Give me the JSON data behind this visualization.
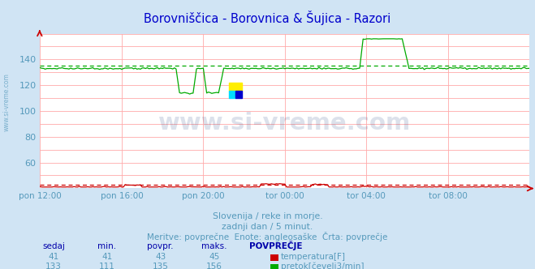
{
  "title": "Borovniščica - Borovnica & Šujica - Razori",
  "title_color": "#0000cc",
  "bg_color": "#d0e4f4",
  "plot_bg_color": "#ffffff",
  "grid_color_h": "#ffaaaa",
  "grid_color_v": "#ffaaaa",
  "xlabel_color": "#5599bb",
  "tick_color": "#5599bb",
  "xlabels": [
    "pon 12:00",
    "pon 16:00",
    "pon 20:00",
    "tor 00:00",
    "tor 04:00",
    "tor 08:00"
  ],
  "xtick_positions": [
    0,
    48,
    96,
    144,
    192,
    240
  ],
  "total_points": 289,
  "ylim": [
    40,
    160
  ],
  "yticks": [
    60,
    80,
    100,
    120,
    140
  ],
  "temp_color": "#cc0000",
  "flow_color": "#00aa00",
  "temp_avg": 43,
  "flow_avg": 135,
  "subtitle1": "Slovenija / reke in morje.",
  "subtitle2": "zadnji dan / 5 minut.",
  "subtitle3": "Meritve: povprečne  Enote: angleosaške  Črta: povprečje",
  "legend_headers": [
    "sedaj",
    "min.",
    "povpr.",
    "maks.",
    "POVPREČJE"
  ],
  "temp_row": [
    "41",
    "41",
    "43",
    "45"
  ],
  "flow_row": [
    "133",
    "111",
    "135",
    "156"
  ],
  "temp_label": "temperatura[F]",
  "flow_label": "pretok[čevelj3/min]",
  "watermark_text": "www.si-vreme.com",
  "watermark_color": "#1a3a7a",
  "logo_yellow": "#ffee00",
  "logo_cyan": "#00ddff",
  "logo_blue": "#0000cc"
}
